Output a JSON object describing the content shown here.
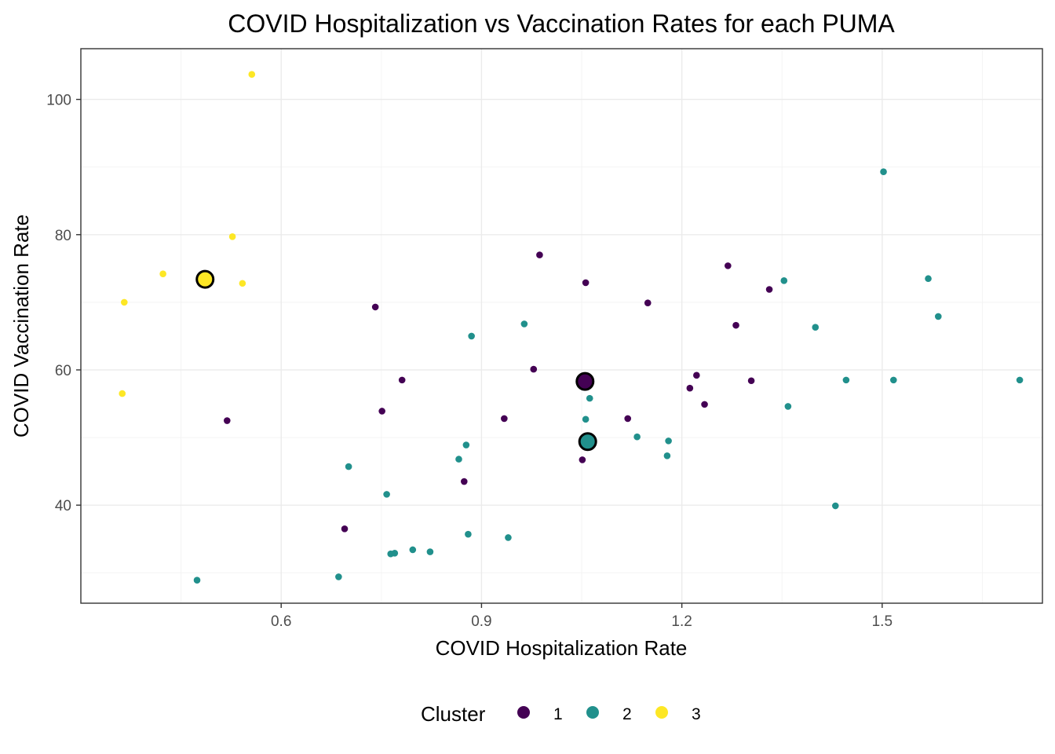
{
  "chart_data": {
    "type": "scatter",
    "title": "COVID Hospitalization vs Vaccination Rates for each PUMA",
    "xlabel": "COVID Hospitalization Rate",
    "ylabel": "COVID Vaccination Rate",
    "xlim": [
      0.3,
      1.74
    ],
    "ylim": [
      25.5,
      107.5
    ],
    "x_ticks": [
      0.6,
      0.9,
      1.2,
      1.5
    ],
    "x_tick_labels": [
      "0.6",
      "0.9",
      "1.2",
      "1.5"
    ],
    "x_minor_ticks": [
      0.45,
      0.75,
      1.05,
      1.35,
      1.65
    ],
    "y_ticks": [
      40,
      60,
      80,
      100
    ],
    "y_tick_labels": [
      "40",
      "60",
      "80",
      "100"
    ],
    "y_minor_ticks": [
      30,
      50,
      70,
      90
    ],
    "grid": true,
    "legend": {
      "title": "Cluster",
      "position": "bottom",
      "entries": [
        {
          "label": "1",
          "color": "#440154"
        },
        {
          "label": "2",
          "color": "#21908C"
        },
        {
          "label": "3",
          "color": "#FDE725"
        }
      ]
    },
    "series": [
      {
        "name": "1",
        "color": "#440154",
        "points": [
          [
            0.519,
            52.5
          ],
          [
            0.695,
            36.5
          ],
          [
            0.741,
            69.3
          ],
          [
            0.751,
            53.9
          ],
          [
            0.781,
            58.5
          ],
          [
            0.874,
            43.5
          ],
          [
            0.934,
            52.8
          ],
          [
            0.978,
            60.1
          ],
          [
            0.987,
            77.0
          ],
          [
            1.051,
            46.7
          ],
          [
            1.056,
            72.9
          ],
          [
            1.119,
            52.8
          ],
          [
            1.149,
            69.9
          ],
          [
            1.212,
            57.3
          ],
          [
            1.222,
            59.2
          ],
          [
            1.234,
            54.9
          ],
          [
            1.269,
            75.4
          ],
          [
            1.281,
            66.6
          ],
          [
            1.304,
            58.4
          ],
          [
            1.331,
            71.9
          ]
        ],
        "centroid": [
          1.055,
          58.3
        ]
      },
      {
        "name": "2",
        "color": "#21908C",
        "points": [
          [
            0.474,
            28.9
          ],
          [
            0.686,
            29.4
          ],
          [
            0.701,
            45.7
          ],
          [
            0.758,
            41.6
          ],
          [
            0.764,
            32.8
          ],
          [
            0.77,
            32.9
          ],
          [
            0.797,
            33.4
          ],
          [
            0.823,
            33.1
          ],
          [
            0.866,
            46.8
          ],
          [
            0.877,
            48.9
          ],
          [
            0.88,
            35.7
          ],
          [
            0.885,
            65.0
          ],
          [
            0.94,
            35.2
          ],
          [
            0.964,
            66.8
          ],
          [
            1.056,
            52.7
          ],
          [
            1.062,
            55.8
          ],
          [
            1.133,
            50.1
          ],
          [
            1.178,
            47.3
          ],
          [
            1.18,
            49.5
          ],
          [
            1.353,
            73.2
          ],
          [
            1.359,
            54.6
          ],
          [
            1.4,
            66.3
          ],
          [
            1.43,
            39.9
          ],
          [
            1.446,
            58.5
          ],
          [
            1.502,
            89.3
          ],
          [
            1.517,
            58.5
          ],
          [
            1.569,
            73.5
          ],
          [
            1.584,
            67.9
          ],
          [
            1.706,
            58.5
          ]
        ],
        "centroid": [
          1.059,
          49.4
        ]
      },
      {
        "name": "3",
        "color": "#FDE725",
        "points": [
          [
            0.362,
            56.5
          ],
          [
            0.365,
            70.0
          ],
          [
            0.423,
            74.2
          ],
          [
            0.527,
            79.7
          ],
          [
            0.542,
            72.8
          ],
          [
            0.556,
            103.7
          ]
        ],
        "centroid": [
          0.486,
          73.4
        ]
      }
    ]
  }
}
